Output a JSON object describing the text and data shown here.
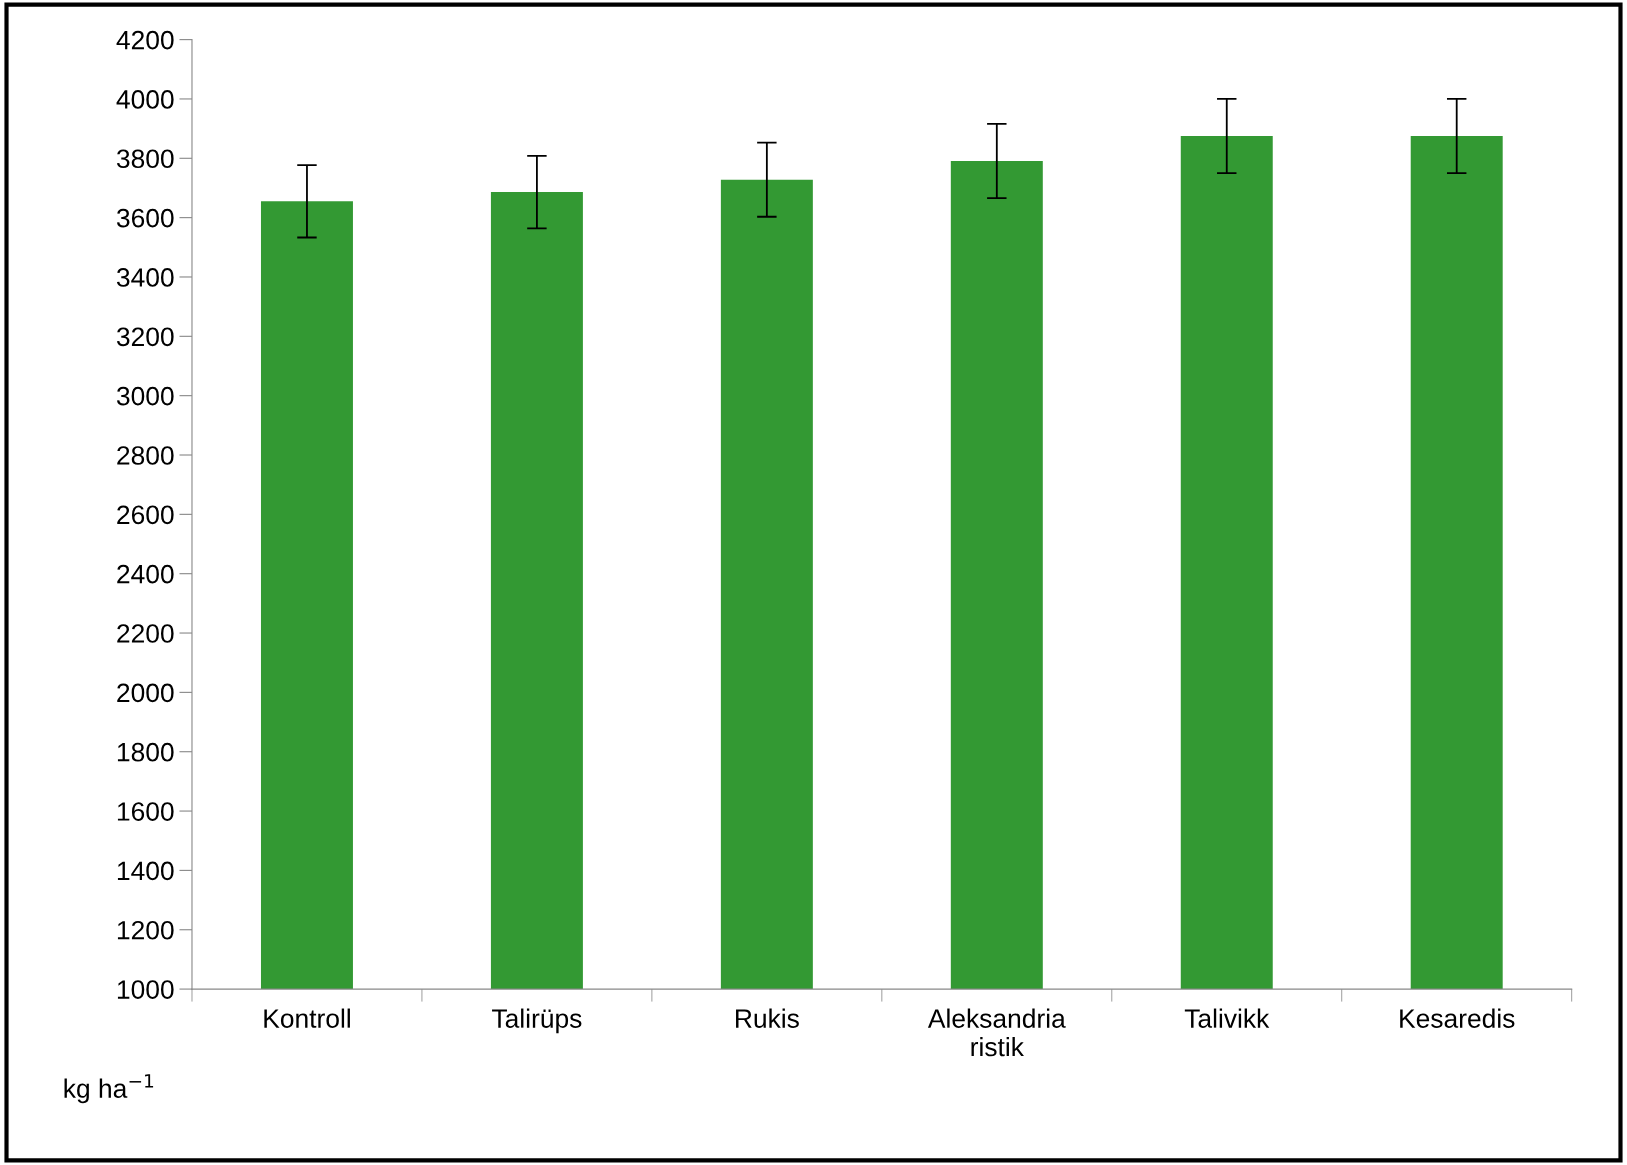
{
  "chart_data": {
    "type": "bar",
    "ylabel": "kg ha$^{−1}$",
    "categories": [
      "Kontroll",
      "Talirüps",
      "Rukis",
      "Aleksandria\nristik",
      "Talivikk",
      "Kesaredis"
    ],
    "values": [
      3655,
      3686,
      3728,
      3791,
      3875,
      3875
    ],
    "errors": [
      122,
      122,
      125,
      125,
      125,
      125
    ],
    "color": "#339933",
    "ylim": [
      1000,
      4200
    ],
    "yticks": [
      1000,
      1200,
      1400,
      1600,
      1800,
      2000,
      2200,
      2400,
      2600,
      2800,
      3000,
      3200,
      3400,
      3600,
      3800,
      4000,
      4200
    ],
    "grid": false,
    "legend": false
  }
}
